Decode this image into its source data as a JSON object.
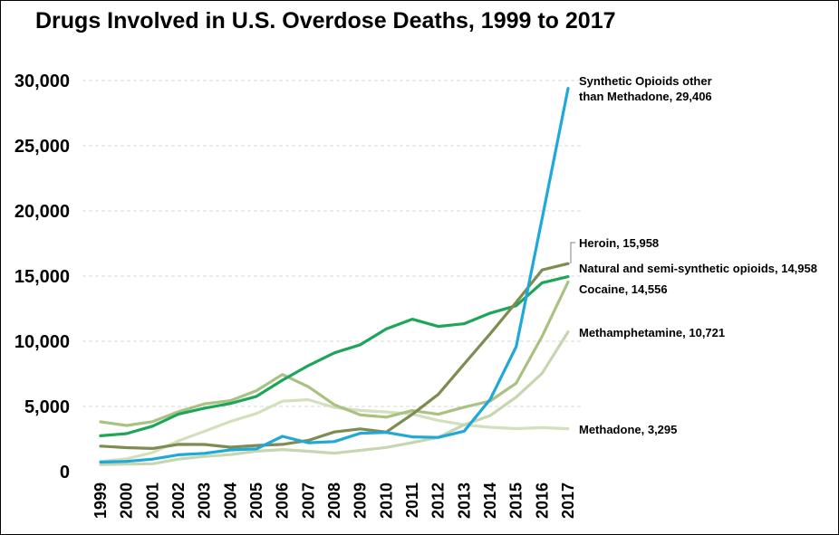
{
  "chart_data": {
    "type": "line",
    "title": "Drugs Involved in U.S. Overdose Deaths, 1999 to 2017",
    "xlabel": "",
    "ylabel": "",
    "ylim": [
      0,
      30000
    ],
    "yticks": [
      "0",
      "5,000",
      "10,000",
      "15,000",
      "20,000",
      "25,000",
      "30,000"
    ],
    "ytick_values": [
      0,
      5000,
      10000,
      15000,
      20000,
      25000,
      30000
    ],
    "x": [
      "1999",
      "2000",
      "2001",
      "2002",
      "2003",
      "2004",
      "2005",
      "2006",
      "2007",
      "2008",
      "2009",
      "2010",
      "2011",
      "2012",
      "2013",
      "2014",
      "2015",
      "2016",
      "2017"
    ],
    "grid": "horizontal-dashed",
    "legend": "end-of-line labels",
    "series": [
      {
        "name": "Methadone",
        "label_lines": [
          "Methadone, 3,295"
        ],
        "color": "#d3e0bd",
        "values": [
          784,
          988,
          1456,
          2358,
          3095,
          3845,
          4460,
          5406,
          5518,
          4924,
          4696,
          4577,
          4418,
          3932,
          3591,
          3400,
          3301,
          3373,
          3295
        ]
      },
      {
        "name": "Methamphetamine",
        "label_lines": [
          "Methamphetamine, 10,721"
        ],
        "color": "#c6d6b0",
        "values": [
          547,
          578,
          606,
          960,
          1166,
          1304,
          1571,
          1692,
          1561,
          1420,
          1631,
          1854,
          2232,
          2623,
          3600,
          4300,
          5716,
          7542,
          10721
        ]
      },
      {
        "name": "Cocaine",
        "label_lines": [
          "Cocaine, 14,556"
        ],
        "color": "#a9c283",
        "values": [
          3822,
          3544,
          3833,
          4599,
          5199,
          5443,
          6208,
          7448,
          6512,
          5129,
          4350,
          4183,
          4681,
          4404,
          4944,
          5415,
          6784,
          10375,
          14556
        ]
      },
      {
        "name": "Natural and semi-synthetic opioids",
        "label_lines": [
          "Natural and semi-synthetic opioids, 14,958"
        ],
        "color": "#1fa55a",
        "values": [
          2749,
          2917,
          3484,
          4416,
          4867,
          5231,
          5774,
          7017,
          8134,
          9109,
          9735,
          10943,
          11693,
          11140,
          11346,
          12159,
          12727,
          14487,
          14958
        ]
      },
      {
        "name": "Heroin",
        "label_lines": [
          "Heroin, 15,958"
        ],
        "color": "#7d8c50",
        "values": [
          1960,
          1842,
          1779,
          2089,
          2080,
          1878,
          2009,
          2088,
          2399,
          3041,
          3278,
          3036,
          4397,
          5925,
          8257,
          10574,
          12989,
          15469,
          15958
        ]
      },
      {
        "name": "Synthetic Opioids other than Methadone",
        "label_lines": [
          "Synthetic Opioids other",
          "than Methadone, 29,406"
        ],
        "color": "#1fa8d8",
        "values": [
          730,
          782,
          957,
          1295,
          1400,
          1664,
          1742,
          2707,
          2213,
          2306,
          2946,
          3007,
          2666,
          2628,
          3105,
          5544,
          9580,
          19413,
          29406
        ]
      }
    ]
  }
}
